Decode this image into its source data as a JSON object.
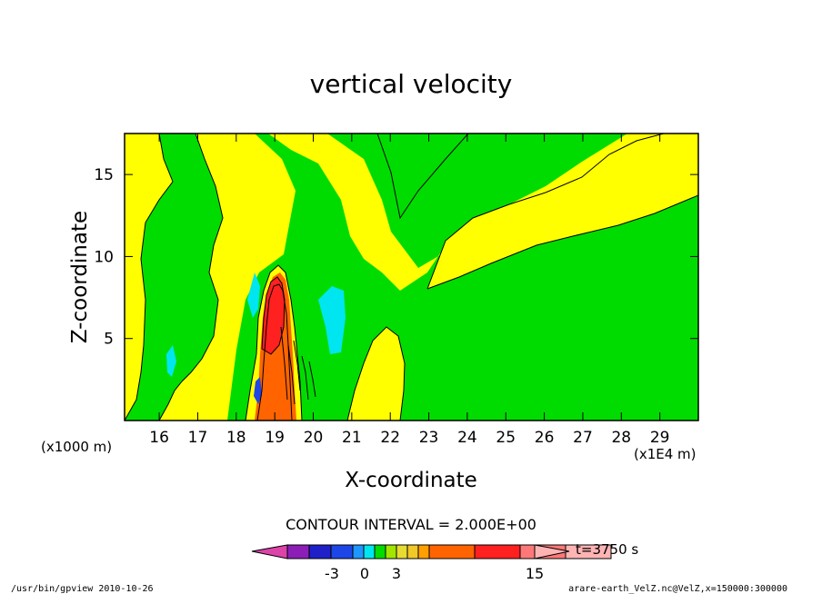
{
  "chart_data": {
    "type": "heatmap",
    "title": "vertical velocity",
    "xlabel": "X-coordinate",
    "ylabel": "Z-coordinate",
    "x_unit_left": "(x1000 m)",
    "x_unit_right": "(x1E4 m)",
    "x_ticks": [
      "16",
      "17",
      "18",
      "19",
      "20",
      "21",
      "22",
      "23",
      "24",
      "25",
      "26",
      "27",
      "28",
      "29"
    ],
    "y_ticks": [
      "5",
      "10",
      "15"
    ],
    "xlim": [
      15.1,
      30
    ],
    "ylim": [
      0,
      17.5
    ],
    "contour_interval_text": "CONTOUR INTERVAL = 2.000E+00",
    "time_label": "t=3750 s",
    "colorbar": {
      "colors": [
        "#dd44aa",
        "#8c1eb7",
        "#2020c8",
        "#1e46e6",
        "#1e96ff",
        "#00e6f0",
        "#00dc00",
        "#a0e600",
        "#e6dc32",
        "#f0c828",
        "#ffa000",
        "#ff6400",
        "#ff2020",
        "#ff7878",
        "#ffb4b4"
      ],
      "tick_labels": [
        "-3",
        "0",
        "3",
        "15"
      ],
      "level_values": [
        -3,
        0,
        3,
        15
      ]
    },
    "regions": [
      {
        "value": "positive-weak",
        "color": "#ffff00"
      },
      {
        "value": "near-zero",
        "color": "#00dc00"
      },
      {
        "value": "negative-weak",
        "color": "#00e6f0"
      },
      {
        "value": "strong-updraft",
        "color": "#ff6400"
      },
      {
        "value": "strongest-updraft",
        "color": "#ff2020"
      }
    ]
  },
  "footer": {
    "left": "/usr/bin/gpview  2010-10-26",
    "right": "arare-earth_VelZ.nc@VelZ,x=150000:300000"
  }
}
